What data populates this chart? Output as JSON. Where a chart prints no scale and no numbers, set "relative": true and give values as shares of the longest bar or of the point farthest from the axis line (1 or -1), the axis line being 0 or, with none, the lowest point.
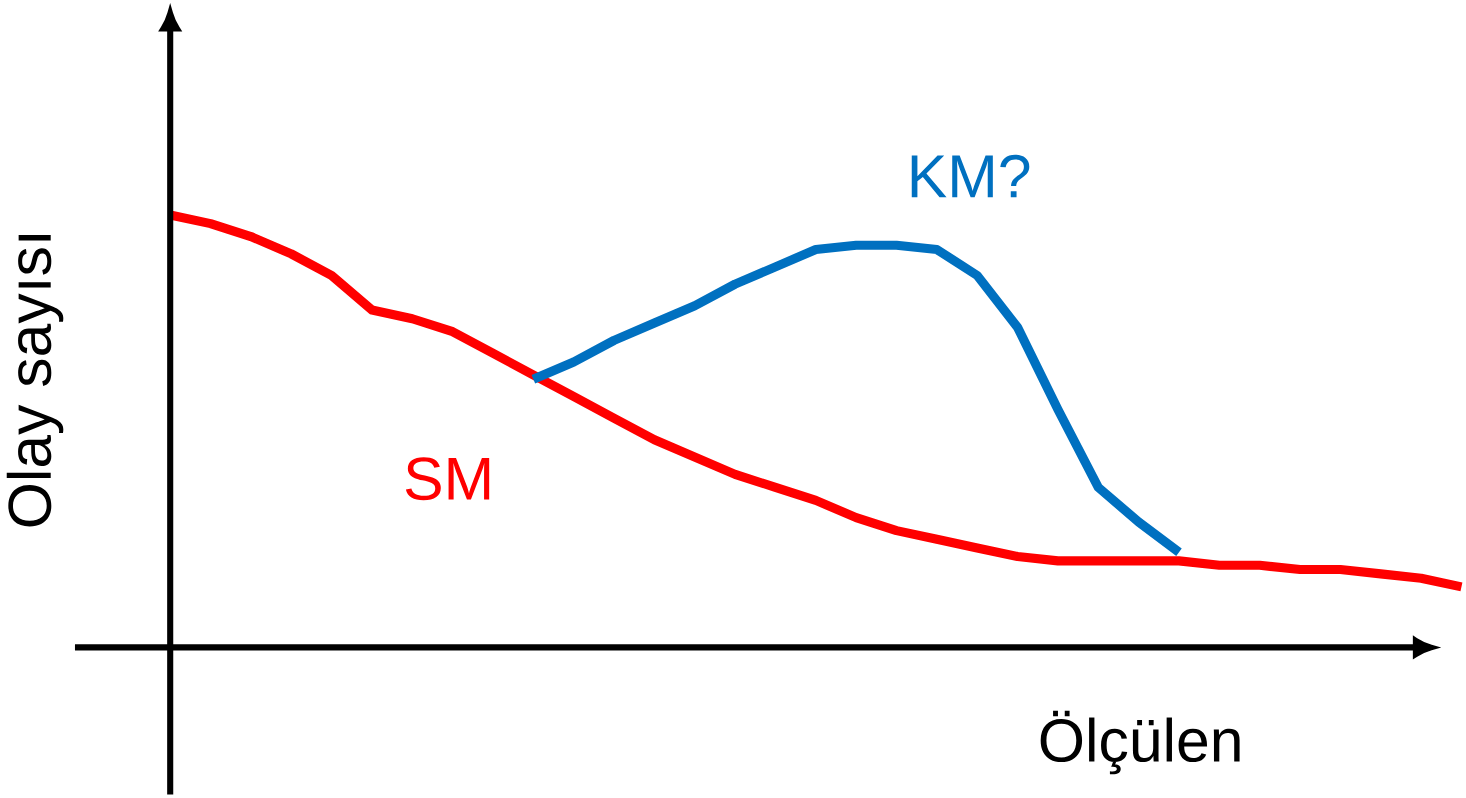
{
  "chart_data": {
    "type": "line",
    "xlabel": "Ölçülen",
    "ylabel": "Olay sayısı",
    "relative": true,
    "legend": false,
    "marker": "none",
    "line_style": "solid",
    "categories": [
      null,
      null,
      null,
      null,
      null,
      null,
      null,
      null,
      null,
      null,
      null,
      null,
      null,
      null,
      null,
      null,
      null,
      null,
      null,
      null,
      null,
      null,
      null,
      null,
      null,
      null,
      null,
      null,
      null,
      null,
      null,
      null,
      null
    ],
    "series": [
      {
        "name": "SM",
        "color": "#ff0000",
        "values": [
          1,
          0.98,
          0.95,
          0.91,
          0.86,
          0.78,
          0.76,
          0.73,
          0.68,
          0.63,
          0.58,
          0.53,
          0.48,
          0.44,
          0.4,
          0.37,
          0.34,
          0.3,
          0.27,
          0.25,
          0.23,
          0.21,
          0.2,
          0.2,
          0.2,
          0.2,
          0.19,
          0.19,
          0.18,
          0.18,
          0.17,
          0.16,
          0.14
        ]
      },
      {
        "name": "KM?",
        "color": "#0070c0",
        "values": [
          null,
          null,
          null,
          null,
          null,
          null,
          null,
          null,
          null,
          0.62,
          0.66,
          0.71,
          0.75,
          0.79,
          0.84,
          0.88,
          0.92,
          0.93,
          0.93,
          0.92,
          0.86,
          0.74,
          0.55,
          0.37,
          0.29,
          0.22,
          null,
          null,
          null,
          null,
          null,
          null,
          null
        ]
      }
    ]
  }
}
